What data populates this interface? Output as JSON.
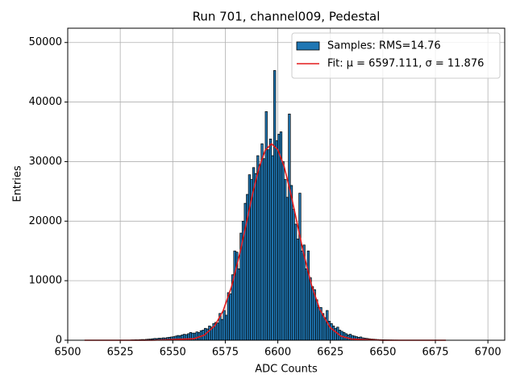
{
  "chart_data": {
    "type": "histogram",
    "title": "Run 701, channel009, Pedestal",
    "xlabel": "ADC Counts",
    "ylabel": "Entries",
    "name": "Samples: RMS=14.76",
    "color": "#1f77b4",
    "edgecolor": "#000000",
    "bins": [
      6530,
      6531,
      6532,
      6533,
      6534,
      6535,
      6536,
      6537,
      6538,
      6539,
      6540,
      6541,
      6542,
      6543,
      6544,
      6545,
      6546,
      6547,
      6548,
      6549,
      6550,
      6551,
      6552,
      6553,
      6554,
      6555,
      6556,
      6557,
      6558,
      6559,
      6560,
      6561,
      6562,
      6563,
      6564,
      6565,
      6566,
      6567,
      6568,
      6569,
      6570,
      6571,
      6572,
      6573,
      6574,
      6575,
      6576,
      6577,
      6578,
      6579,
      6580,
      6581,
      6582,
      6583,
      6584,
      6585,
      6586,
      6587,
      6588,
      6589,
      6590,
      6591,
      6592,
      6593,
      6594,
      6595,
      6596,
      6597,
      6598,
      6599,
      6600,
      6601,
      6602,
      6603,
      6604,
      6605,
      6606,
      6607,
      6608,
      6609,
      6610,
      6611,
      6612,
      6613,
      6614,
      6615,
      6616,
      6617,
      6618,
      6619,
      6620,
      6621,
      6622,
      6623,
      6624,
      6625,
      6626,
      6627,
      6628,
      6629,
      6630,
      6631,
      6632,
      6633,
      6634,
      6635,
      6636,
      6637,
      6638,
      6639,
      6640,
      6641,
      6642,
      6643,
      6644,
      6645,
      6646,
      6647,
      6648,
      6649,
      6650,
      6651,
      6652,
      6653,
      6654,
      6655,
      6656,
      6657,
      6658,
      6659,
      6660,
      6661,
      6662,
      6663,
      6664,
      6665,
      6666
    ],
    "counts": [
      50,
      60,
      80,
      70,
      100,
      120,
      110,
      150,
      180,
      200,
      250,
      300,
      280,
      350,
      330,
      400,
      380,
      450,
      500,
      550,
      600,
      700,
      800,
      750,
      900,
      1000,
      950,
      1100,
      1300,
      1200,
      1200,
      1400,
      1300,
      1600,
      1700,
      2000,
      1900,
      2400,
      2200,
      2800,
      3000,
      2900,
      4500,
      3500,
      5000,
      4200,
      8000,
      7800,
      11000,
      15000,
      14800,
      12000,
      18000,
      20000,
      23000,
      24500,
      27800,
      27000,
      29000,
      28000,
      31000,
      29500,
      33000,
      30500,
      38400,
      32000,
      33800,
      31000,
      45300,
      33500,
      34600,
      35000,
      30000,
      27000,
      24000,
      38000,
      26000,
      22000,
      19500,
      17000,
      24700,
      15000,
      16000,
      12000,
      15000,
      10500,
      9000,
      8500,
      6800,
      5500,
      5500,
      4500,
      3800,
      5000,
      3200,
      2800,
      2400,
      2000,
      2200,
      1700,
      1500,
      1300,
      1100,
      900,
      1000,
      800,
      700,
      600,
      500,
      550,
      400,
      350,
      300,
      250,
      200,
      180,
      150,
      120,
      100,
      90,
      80,
      70,
      60,
      50,
      40,
      30,
      30,
      20,
      20,
      10,
      10,
      5,
      5,
      5,
      5,
      5
    ],
    "series": [
      {
        "name": "Fit: μ = 6597.111, σ = 11.876",
        "color": "#e41a1c",
        "x": [
          6508,
          6540,
          6560,
          6565,
          6570,
          6574,
          6578,
          6582,
          6585,
          6588,
          6591,
          6594,
          6597,
          6600,
          6603,
          6606,
          6609,
          6612,
          6616,
          6620,
          6625,
          6630,
          6635,
          6650,
          6680
        ],
        "values": [
          0,
          0,
          250,
          857,
          2430,
          4980,
          9040,
          14700,
          19600,
          24600,
          28900,
          31900,
          33000,
          32000,
          29200,
          24900,
          20000,
          15000,
          9310,
          5150,
          2090,
          713,
          204,
          0,
          0
        ]
      }
    ],
    "xlim": [
      6500,
      6708
    ],
    "ylim": [
      0,
      52400
    ],
    "xticks": [
      6500,
      6525,
      6550,
      6575,
      6600,
      6625,
      6650,
      6675,
      6700
    ],
    "yticks": [
      0,
      10000,
      20000,
      30000,
      40000,
      50000
    ],
    "grid": true,
    "legend": "upper right"
  }
}
